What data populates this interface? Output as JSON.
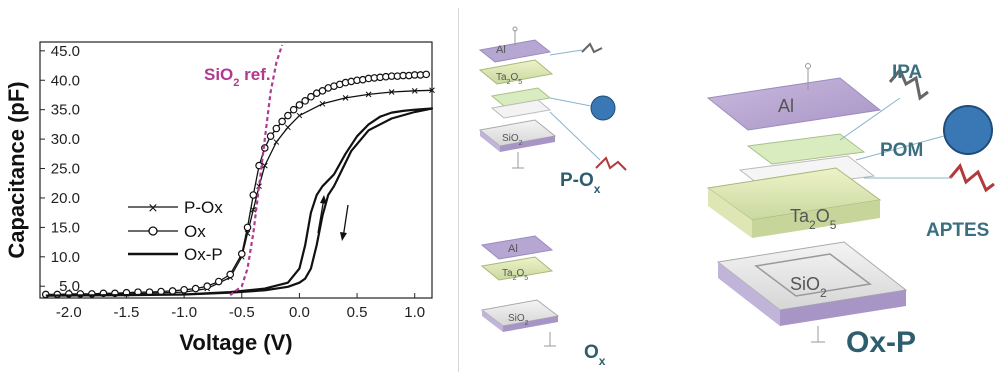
{
  "chart_data": {
    "type": "line",
    "xlabel": "Voltage (V)",
    "ylabel": "Capacitance (pF)",
    "xlim": [
      -2.25,
      1.15
    ],
    "ylim": [
      3.0,
      46.5
    ],
    "xticks": [
      -2.0,
      -1.5,
      -1.0,
      -0.5,
      0.0,
      0.5,
      1.0
    ],
    "xtick_labels": [
      "-2.0",
      "-1.5",
      "-1.0",
      "-0.5",
      "0.0",
      "0.5",
      "1.0"
    ],
    "yticks": [
      5,
      10,
      15,
      20,
      25,
      30,
      35,
      40,
      45
    ],
    "ytick_labels": [
      "5.0",
      "10.0",
      "15.0",
      "20.0",
      "25.0",
      "30.0",
      "35.0",
      "40.0",
      "45.0"
    ],
    "annotation": {
      "label_main": "SiO",
      "label_sub": "2",
      "label_rest": " ref.",
      "color": "#b03a8f"
    },
    "legend": {
      "position": "lower-left",
      "entries": [
        "P-Ox",
        "Ox",
        "Ox-P"
      ]
    },
    "series": [
      {
        "name": "P-Ox",
        "marker": "cross",
        "x": [
          -2.2,
          -1.5,
          -1.0,
          -0.8,
          -0.6,
          -0.5,
          -0.45,
          -0.4,
          -0.35,
          -0.3,
          -0.2,
          -0.1,
          0.0,
          0.2,
          0.4,
          0.6,
          0.8,
          1.0,
          1.15
        ],
        "y": [
          3.6,
          3.7,
          4.0,
          4.6,
          6.5,
          10.0,
          14.0,
          18.0,
          22.0,
          25.5,
          29.5,
          32.0,
          34.0,
          36.0,
          37.0,
          37.6,
          38.0,
          38.2,
          38.3
        ]
      },
      {
        "name": "Ox",
        "marker": "circle",
        "x": [
          -2.2,
          -2.1,
          -2.0,
          -1.9,
          -1.8,
          -1.7,
          -1.6,
          -1.5,
          -1.4,
          -1.3,
          -1.2,
          -1.1,
          -1.0,
          -0.9,
          -0.8,
          -0.7,
          -0.6,
          -0.5,
          -0.45,
          -0.4,
          -0.35,
          -0.3,
          -0.25,
          -0.2,
          -0.15,
          -0.1,
          -0.05,
          0.0,
          0.05,
          0.1,
          0.15,
          0.2,
          0.25,
          0.3,
          0.35,
          0.4,
          0.45,
          0.5,
          0.55,
          0.6,
          0.65,
          0.7,
          0.75,
          0.8,
          0.85,
          0.9,
          0.95,
          1.0,
          1.05,
          1.1
        ],
        "y": [
          3.6,
          3.6,
          3.7,
          3.7,
          3.7,
          3.8,
          3.8,
          3.9,
          4.0,
          4.0,
          4.1,
          4.2,
          4.4,
          4.6,
          5.0,
          5.8,
          7.0,
          10.5,
          15.0,
          20.5,
          25.5,
          28.5,
          30.5,
          31.8,
          33.0,
          34.0,
          35.0,
          35.8,
          36.5,
          37.2,
          37.8,
          38.2,
          38.7,
          39.0,
          39.3,
          39.6,
          39.8,
          40.0,
          40.1,
          40.3,
          40.4,
          40.5,
          40.6,
          40.7,
          40.7,
          40.8,
          40.8,
          40.9,
          40.9,
          41.0
        ]
      },
      {
        "name": "Ox-P",
        "marker": "none",
        "x": [
          -2.2,
          -1.5,
          -1.0,
          -0.6,
          -0.3,
          -0.1,
          0.0,
          0.05,
          0.1,
          0.15,
          0.2,
          0.3,
          0.4,
          0.5,
          0.6,
          0.7,
          0.8,
          0.9,
          1.0,
          1.15,
          1.0,
          0.8,
          0.6,
          0.45,
          0.35,
          0.3,
          0.25,
          0.2,
          0.15,
          0.1,
          0.05,
          0.0,
          -0.1,
          -0.3,
          -0.6,
          -1.0,
          -1.5,
          -2.2
        ],
        "y": [
          3.4,
          3.5,
          3.6,
          4.0,
          4.6,
          5.6,
          8.0,
          12.0,
          17.5,
          20.5,
          22.0,
          24.0,
          27.5,
          30.5,
          32.5,
          33.8,
          34.5,
          34.8,
          35.0,
          35.2,
          34.6,
          33.5,
          31.5,
          28.0,
          24.0,
          22.0,
          20.5,
          17.0,
          12.0,
          8.0,
          6.3,
          5.6,
          4.9,
          4.3,
          3.9,
          3.6,
          3.5,
          3.4
        ]
      },
      {
        "name": "SiO2 ref.",
        "marker": "none",
        "style": "dashed",
        "color": "#b03a8f",
        "x": [
          -0.6,
          -0.5,
          -0.45,
          -0.4,
          -0.35,
          -0.3,
          -0.25,
          -0.2,
          -0.15
        ],
        "y": [
          3.5,
          5.0,
          8.0,
          14.0,
          22.0,
          30.0,
          38.0,
          43.0,
          46.0
        ]
      }
    ]
  },
  "diagram": {
    "device_p_ox": {
      "layers": [
        "Al",
        "Ta",
        "2",
        "O",
        "5",
        "SiO",
        "2"
      ],
      "label_main": "P-O",
      "label_sub": "x"
    },
    "device_ox": {
      "layers": [
        "Al",
        "Ta",
        "2",
        "O",
        "5",
        "SiO",
        "2"
      ],
      "label_main": "O",
      "label_sub": "x"
    },
    "device_ox_p": {
      "layers": [
        "Al",
        "Ta",
        "2",
        "O",
        "5",
        "SiO",
        "2"
      ],
      "label": "Ox-P",
      "molecules": [
        "IPA",
        "POM",
        "APTES"
      ]
    }
  }
}
